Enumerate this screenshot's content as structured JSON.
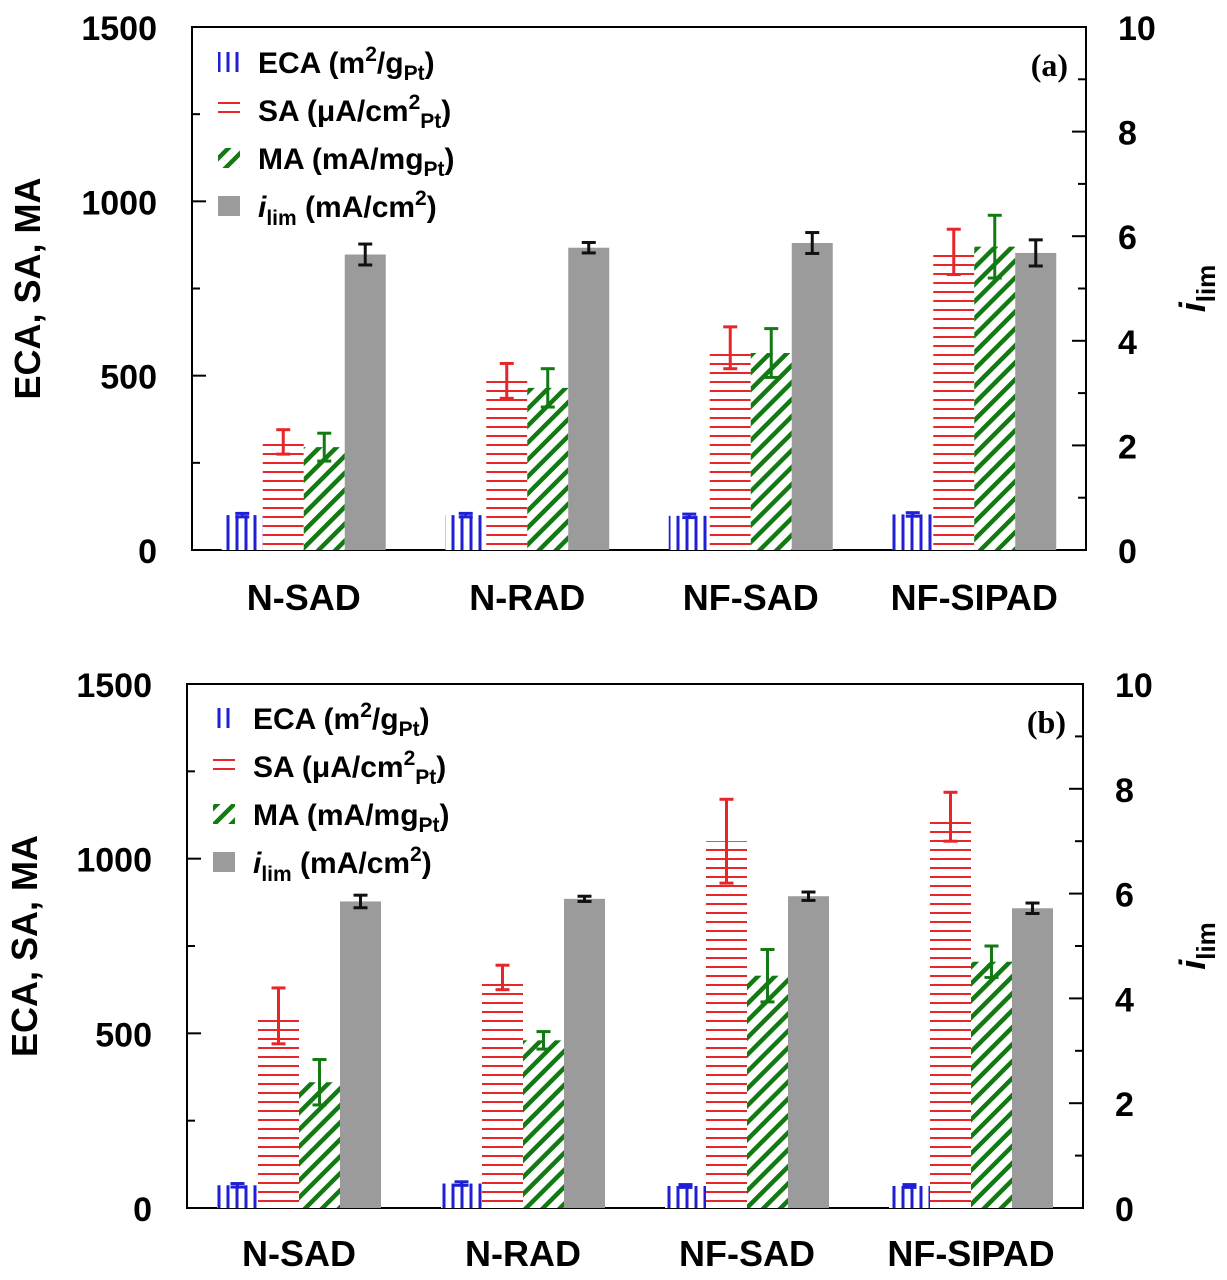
{
  "chart_data": [
    {
      "type": "bar",
      "panel_label": "(a)",
      "categories": [
        "N-SAD",
        "N-RAD",
        "NF-SAD",
        "NF-SIPAD"
      ],
      "ylabel": "ECA, SA, MA",
      "y2label": {
        "main": "i",
        "sub": "lim"
      },
      "ylim": [
        0,
        1500
      ],
      "y2lim": [
        0,
        10
      ],
      "yticks": [
        "0",
        "500",
        "1000",
        "1500"
      ],
      "y2ticks": [
        "0",
        "2",
        "4",
        "6",
        "8",
        "10"
      ],
      "series": [
        {
          "key": "eca",
          "axis": "left",
          "color": "#1f1fd6",
          "pattern": "vertical",
          "legend": {
            "main": "ECA (m",
            "sup": "2",
            "mid": "/g",
            "sub": "Pt",
            "end": ")"
          },
          "values": [
            100,
            100,
            98,
            102
          ],
          "errors": [
            5,
            5,
            5,
            5
          ]
        },
        {
          "key": "sa",
          "axis": "left",
          "color": "#e8262a",
          "pattern": "horizontal",
          "legend": {
            "main": "SA (μA/cm",
            "sup": "2",
            "sub": "Pt",
            "end": ")"
          },
          "values": [
            310,
            485,
            580,
            855
          ],
          "errors": [
            35,
            50,
            60,
            65
          ]
        },
        {
          "key": "ma",
          "axis": "left",
          "color": "#137a13",
          "pattern": "diagonal",
          "legend": {
            "main": "MA (mA/mg",
            "sub": "Pt",
            "end": ")"
          },
          "values": [
            295,
            465,
            565,
            870
          ],
          "errors": [
            40,
            55,
            70,
            90
          ]
        },
        {
          "key": "ilim",
          "axis": "right",
          "color": "#9b9b9b",
          "pattern": "solid",
          "legend": {
            "italic": "i",
            "isub": "lim",
            "main": " (mA/cm",
            "sup": "2",
            "end": ")"
          },
          "values": [
            5.65,
            5.78,
            5.87,
            5.68
          ],
          "errors": [
            0.2,
            0.1,
            0.2,
            0.25
          ]
        }
      ]
    },
    {
      "type": "bar",
      "panel_label": "(b)",
      "categories": [
        "N-SAD",
        "N-RAD",
        "NF-SAD",
        "NF-SIPAD"
      ],
      "ylabel": "ECA, SA, MA",
      "y2label": {
        "main": "i",
        "sub": "lim"
      },
      "ylim": [
        0,
        1500
      ],
      "y2lim": [
        0,
        10
      ],
      "yticks": [
        "0",
        "500",
        "1000",
        "1500"
      ],
      "y2ticks": [
        "0",
        "2",
        "4",
        "6",
        "8",
        "10"
      ],
      "series": [
        {
          "key": "eca",
          "axis": "left",
          "color": "#1f1fd6",
          "pattern": "vertical",
          "legend": {
            "main": "ECA (m",
            "sup": "2",
            "mid": "/g",
            "sub": "Pt",
            "end": ")"
          },
          "values": [
            65,
            70,
            63,
            63
          ],
          "errors": [
            5,
            5,
            4,
            4
          ]
        },
        {
          "key": "sa",
          "axis": "left",
          "color": "#e8262a",
          "pattern": "horizontal",
          "legend": {
            "main": "SA (μA/cm",
            "sup": "2",
            "sub": "Pt",
            "end": ")"
          },
          "values": [
            550,
            660,
            1050,
            1120
          ],
          "errors": [
            80,
            35,
            120,
            70
          ]
        },
        {
          "key": "ma",
          "axis": "left",
          "color": "#137a13",
          "pattern": "diagonal",
          "legend": {
            "main": "MA (mA/mg",
            "sub": "Pt",
            "end": ")"
          },
          "values": [
            360,
            480,
            665,
            705
          ],
          "errors": [
            65,
            25,
            75,
            45
          ]
        },
        {
          "key": "ilim",
          "axis": "right",
          "color": "#9b9b9b",
          "pattern": "solid",
          "legend": {
            "italic": "i",
            "isub": "lim",
            "main": " (mA/cm",
            "sup": "2",
            "end": ")"
          },
          "values": [
            5.85,
            5.9,
            5.95,
            5.72
          ],
          "errors": [
            0.12,
            0.05,
            0.08,
            0.1
          ]
        }
      ]
    }
  ]
}
